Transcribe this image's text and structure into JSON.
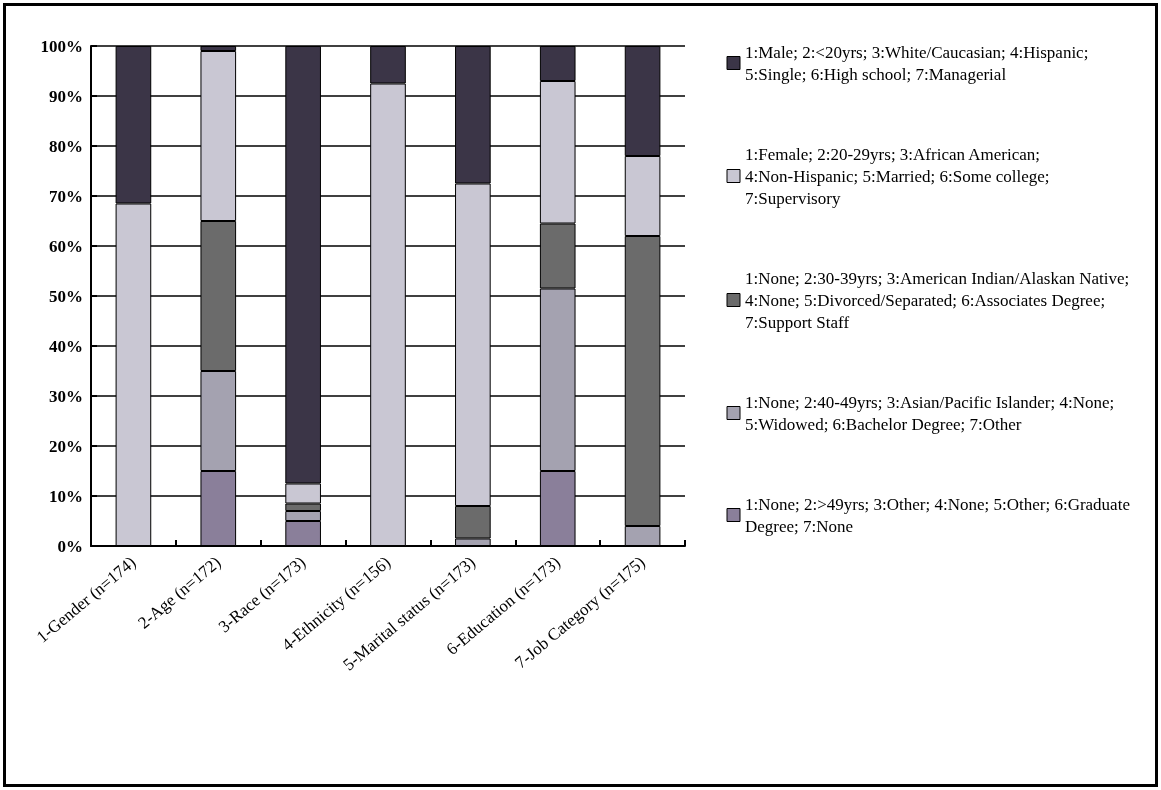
{
  "chart_data": {
    "type": "bar",
    "stacked": true,
    "categories": [
      "1-Gender (n=174)",
      "2-Age (n=172)",
      "3-Race (n=173)",
      "4-Ethnicity (n=156)",
      "5-Marital status (n=173)",
      "6-Education (n=173)",
      "7-Job Category (n=175)"
    ],
    "series": [
      {
        "name": "1:None; 2:>49yrs; 3:Other; 4:None; 5:Other; 6:Graduate Degree; 7:None",
        "color": "#8a7f9a",
        "values": [
          0,
          15,
          5,
          0,
          0,
          15,
          0
        ]
      },
      {
        "name": "1:None; 2:40-49yrs; 3:Asian/Pacific Islander; 4:None; 5:Widowed; 6:Bachelor Degree; 7:Other",
        "color": "#a4a2b0",
        "values": [
          0,
          20,
          2,
          0,
          1.5,
          36.5,
          4
        ]
      },
      {
        "name": "1:None; 2:30-39yrs; 3:American Indian/Alaskan Native; 4:None; 5:Divorced/Separated; 6:Associates Degree; 7:Support Staff",
        "color": "#6b6b6b",
        "values": [
          0,
          30,
          1.5,
          0,
          6.5,
          13,
          58
        ]
      },
      {
        "name": "1:Female; 2:20-29yrs; 3:African American; 4:Non-Hispanic; 5:Married; 6:Some college; 7:Supervisory",
        "color": "#c9c7d3",
        "values": [
          68.5,
          34,
          4,
          92.5,
          64.5,
          28.5,
          16
        ]
      },
      {
        "name": "1:Male; 2:<20yrs; 3:White/Caucasian; 4:Hispanic; 5:Single; 6:High school; 7:Managerial",
        "color": "#3b3547",
        "values": [
          31.5,
          1,
          87.5,
          7.5,
          27.5,
          7,
          22
        ]
      }
    ],
    "ylim": [
      0,
      100
    ],
    "yticks": [
      {
        "value": 0,
        "label": "0%"
      },
      {
        "value": 10,
        "label": "10%"
      },
      {
        "value": 20,
        "label": "20%"
      },
      {
        "value": 30,
        "label": "30%"
      },
      {
        "value": 40,
        "label": "40%"
      },
      {
        "value": 50,
        "label": "50%"
      },
      {
        "value": 60,
        "label": "60%"
      },
      {
        "value": 70,
        "label": "70%"
      },
      {
        "value": 80,
        "label": "80%"
      },
      {
        "value": 90,
        "label": "90%"
      },
      {
        "value": 100,
        "label": "100%"
      }
    ],
    "grid": "y",
    "legend": "right"
  }
}
